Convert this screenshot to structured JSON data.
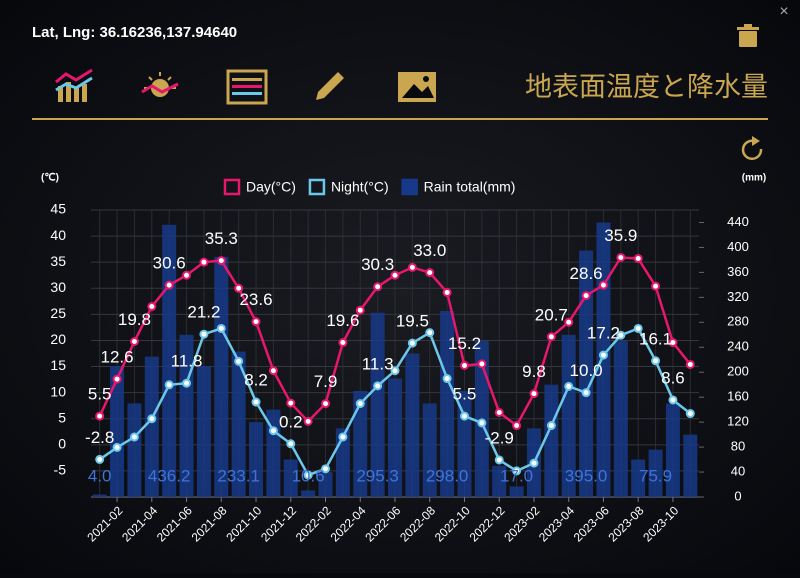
{
  "header": {
    "coords": "Lat, Lng: 36.16236,137.94640",
    "title": "地表面温度と降水量"
  },
  "chart_data": {
    "type": "line-bar",
    "y_label": "(℃)",
    "y2_label": "(mm)",
    "categories": [
      null,
      "2021-02",
      null,
      "2021-04",
      null,
      "2021-06",
      null,
      "2021-08",
      null,
      "2021-10",
      null,
      "2021-12",
      null,
      "2022-02",
      null,
      "2022-04",
      null,
      "2022-06",
      null,
      "2022-08",
      null,
      "2022-10",
      null,
      "2022-12",
      null,
      "2023-02",
      null,
      "2023-04",
      null,
      "2023-06",
      null,
      "2023-08",
      null,
      "2023-10",
      null
    ],
    "ylim": [
      -10,
      45
    ],
    "yticks": [
      -5,
      0,
      5,
      10,
      15,
      20,
      25,
      30,
      35,
      40,
      45
    ],
    "y2lim": [
      0,
      460
    ],
    "y2ticks": [
      0,
      40,
      80,
      120,
      160,
      200,
      240,
      280,
      320,
      360,
      400,
      440
    ],
    "grid": true,
    "legend": "top",
    "series": [
      {
        "name": "Day(°C)",
        "kind": "line",
        "color": "#e8176e",
        "values": [
          5.5,
          12.6,
          19.8,
          26.5,
          30.6,
          32.5,
          35.0,
          35.3,
          30.0,
          23.6,
          14.2,
          8.0,
          4.5,
          7.9,
          19.6,
          25.8,
          30.3,
          32.5,
          34.0,
          33.0,
          29.2,
          15.2,
          15.5,
          6.2,
          3.7,
          9.8,
          20.7,
          23.5,
          28.6,
          30.6,
          35.9,
          35.7,
          30.4,
          19.6,
          15.4
        ],
        "value_labels": [
          "5.5",
          "12.6",
          "19.8",
          null,
          "30.6",
          null,
          null,
          "35.3",
          null,
          "23.6",
          null,
          null,
          null,
          "7.9",
          "19.6",
          null,
          "30.3",
          null,
          null,
          "33.0",
          null,
          "15.2",
          null,
          null,
          null,
          "9.8",
          "20.7",
          null,
          "28.6",
          null,
          "35.9",
          null,
          null,
          null,
          null
        ]
      },
      {
        "name": "Night(°C)",
        "kind": "line",
        "color": "#6cc8ea",
        "values": [
          -2.8,
          -0.5,
          1.5,
          5.0,
          11.5,
          11.8,
          21.2,
          22.3,
          16.0,
          8.2,
          2.7,
          0.2,
          -5.8,
          -4.6,
          1.5,
          7.9,
          11.3,
          14.2,
          19.5,
          21.5,
          12.7,
          5.5,
          4.2,
          -2.9,
          -5.0,
          -3.5,
          3.7,
          11.2,
          10.0,
          17.2,
          21.0,
          22.3,
          16.1,
          8.6,
          6.0
        ],
        "value_labels": [
          "-2.8",
          null,
          null,
          null,
          null,
          "11.8",
          "21.2",
          null,
          null,
          "8.2",
          null,
          "0.2",
          null,
          null,
          null,
          null,
          "11.3",
          null,
          "19.5",
          null,
          null,
          "5.5",
          null,
          "-2.9",
          null,
          null,
          null,
          null,
          "10.0",
          "17.2",
          null,
          null,
          "16.1",
          "8.6",
          null
        ]
      },
      {
        "name": "Rain total(mm)",
        "kind": "bar",
        "axis": "y2",
        "color": "#17398a",
        "values": [
          4.0,
          210,
          150,
          225,
          436.2,
          260,
          210,
          385,
          233.1,
          120,
          140,
          60,
          10.6,
          40,
          110,
          170,
          295.3,
          190,
          230,
          150,
          298.0,
          170,
          250,
          50,
          17.0,
          110,
          180,
          260,
          395.0,
          440,
          250,
          60,
          75.9,
          150,
          100
        ],
        "value_labels": [
          "4.0",
          null,
          null,
          null,
          "436.2",
          null,
          null,
          null,
          "233.1",
          null,
          null,
          null,
          "10.6",
          null,
          null,
          null,
          "295.3",
          null,
          null,
          null,
          "298.0",
          null,
          null,
          null,
          "17.0",
          null,
          null,
          null,
          "395.0",
          null,
          null,
          null,
          "75.9",
          null,
          null
        ]
      }
    ]
  }
}
